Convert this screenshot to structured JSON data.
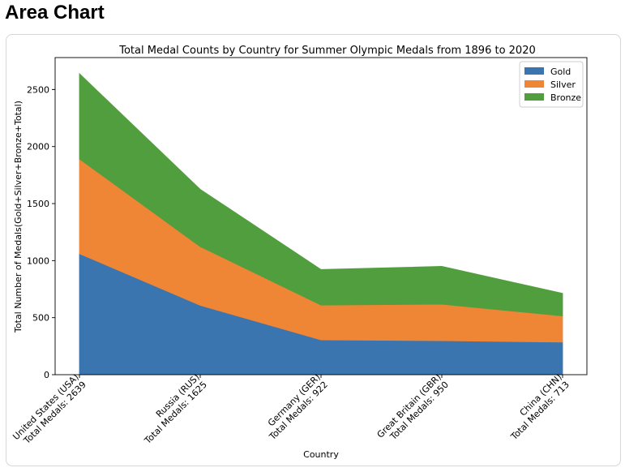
{
  "page": {
    "heading": "Area Chart"
  },
  "chart_data": {
    "type": "area",
    "stacked": true,
    "title": "Total Medal Counts by Country for Summer Olympic Medals from 1896 to 2020",
    "xlabel": "Country",
    "ylabel": "Total Number of Medals(Gold+Silver+Bronze+Total)",
    "categories": [
      [
        "United States (USA)",
        "Total Medals: 2639"
      ],
      [
        "Russia (RUS)",
        "Total Medals: 1625"
      ],
      [
        "Germany (GER)",
        "Total Medals: 922"
      ],
      [
        "Great Britain (GBR)",
        "Total Medals: 950"
      ],
      [
        "China (CHN)",
        "Total Medals: 713"
      ]
    ],
    "series": [
      {
        "name": "Gold",
        "color": "#3b75af",
        "values": [
          1061,
          608,
          305,
          298,
          285
        ]
      },
      {
        "name": "Silver",
        "color": "#ef8636",
        "values": [
          830,
          515,
          305,
          320,
          230
        ]
      },
      {
        "name": "Bronze",
        "color": "#519e3e",
        "values": [
          748,
          502,
          312,
          332,
          198
        ]
      }
    ],
    "ylim": [
      0,
      2780
    ],
    "yticks": [
      0,
      500,
      1000,
      1500,
      2000,
      2500
    ],
    "grid": false,
    "legend_position": "top-right"
  }
}
